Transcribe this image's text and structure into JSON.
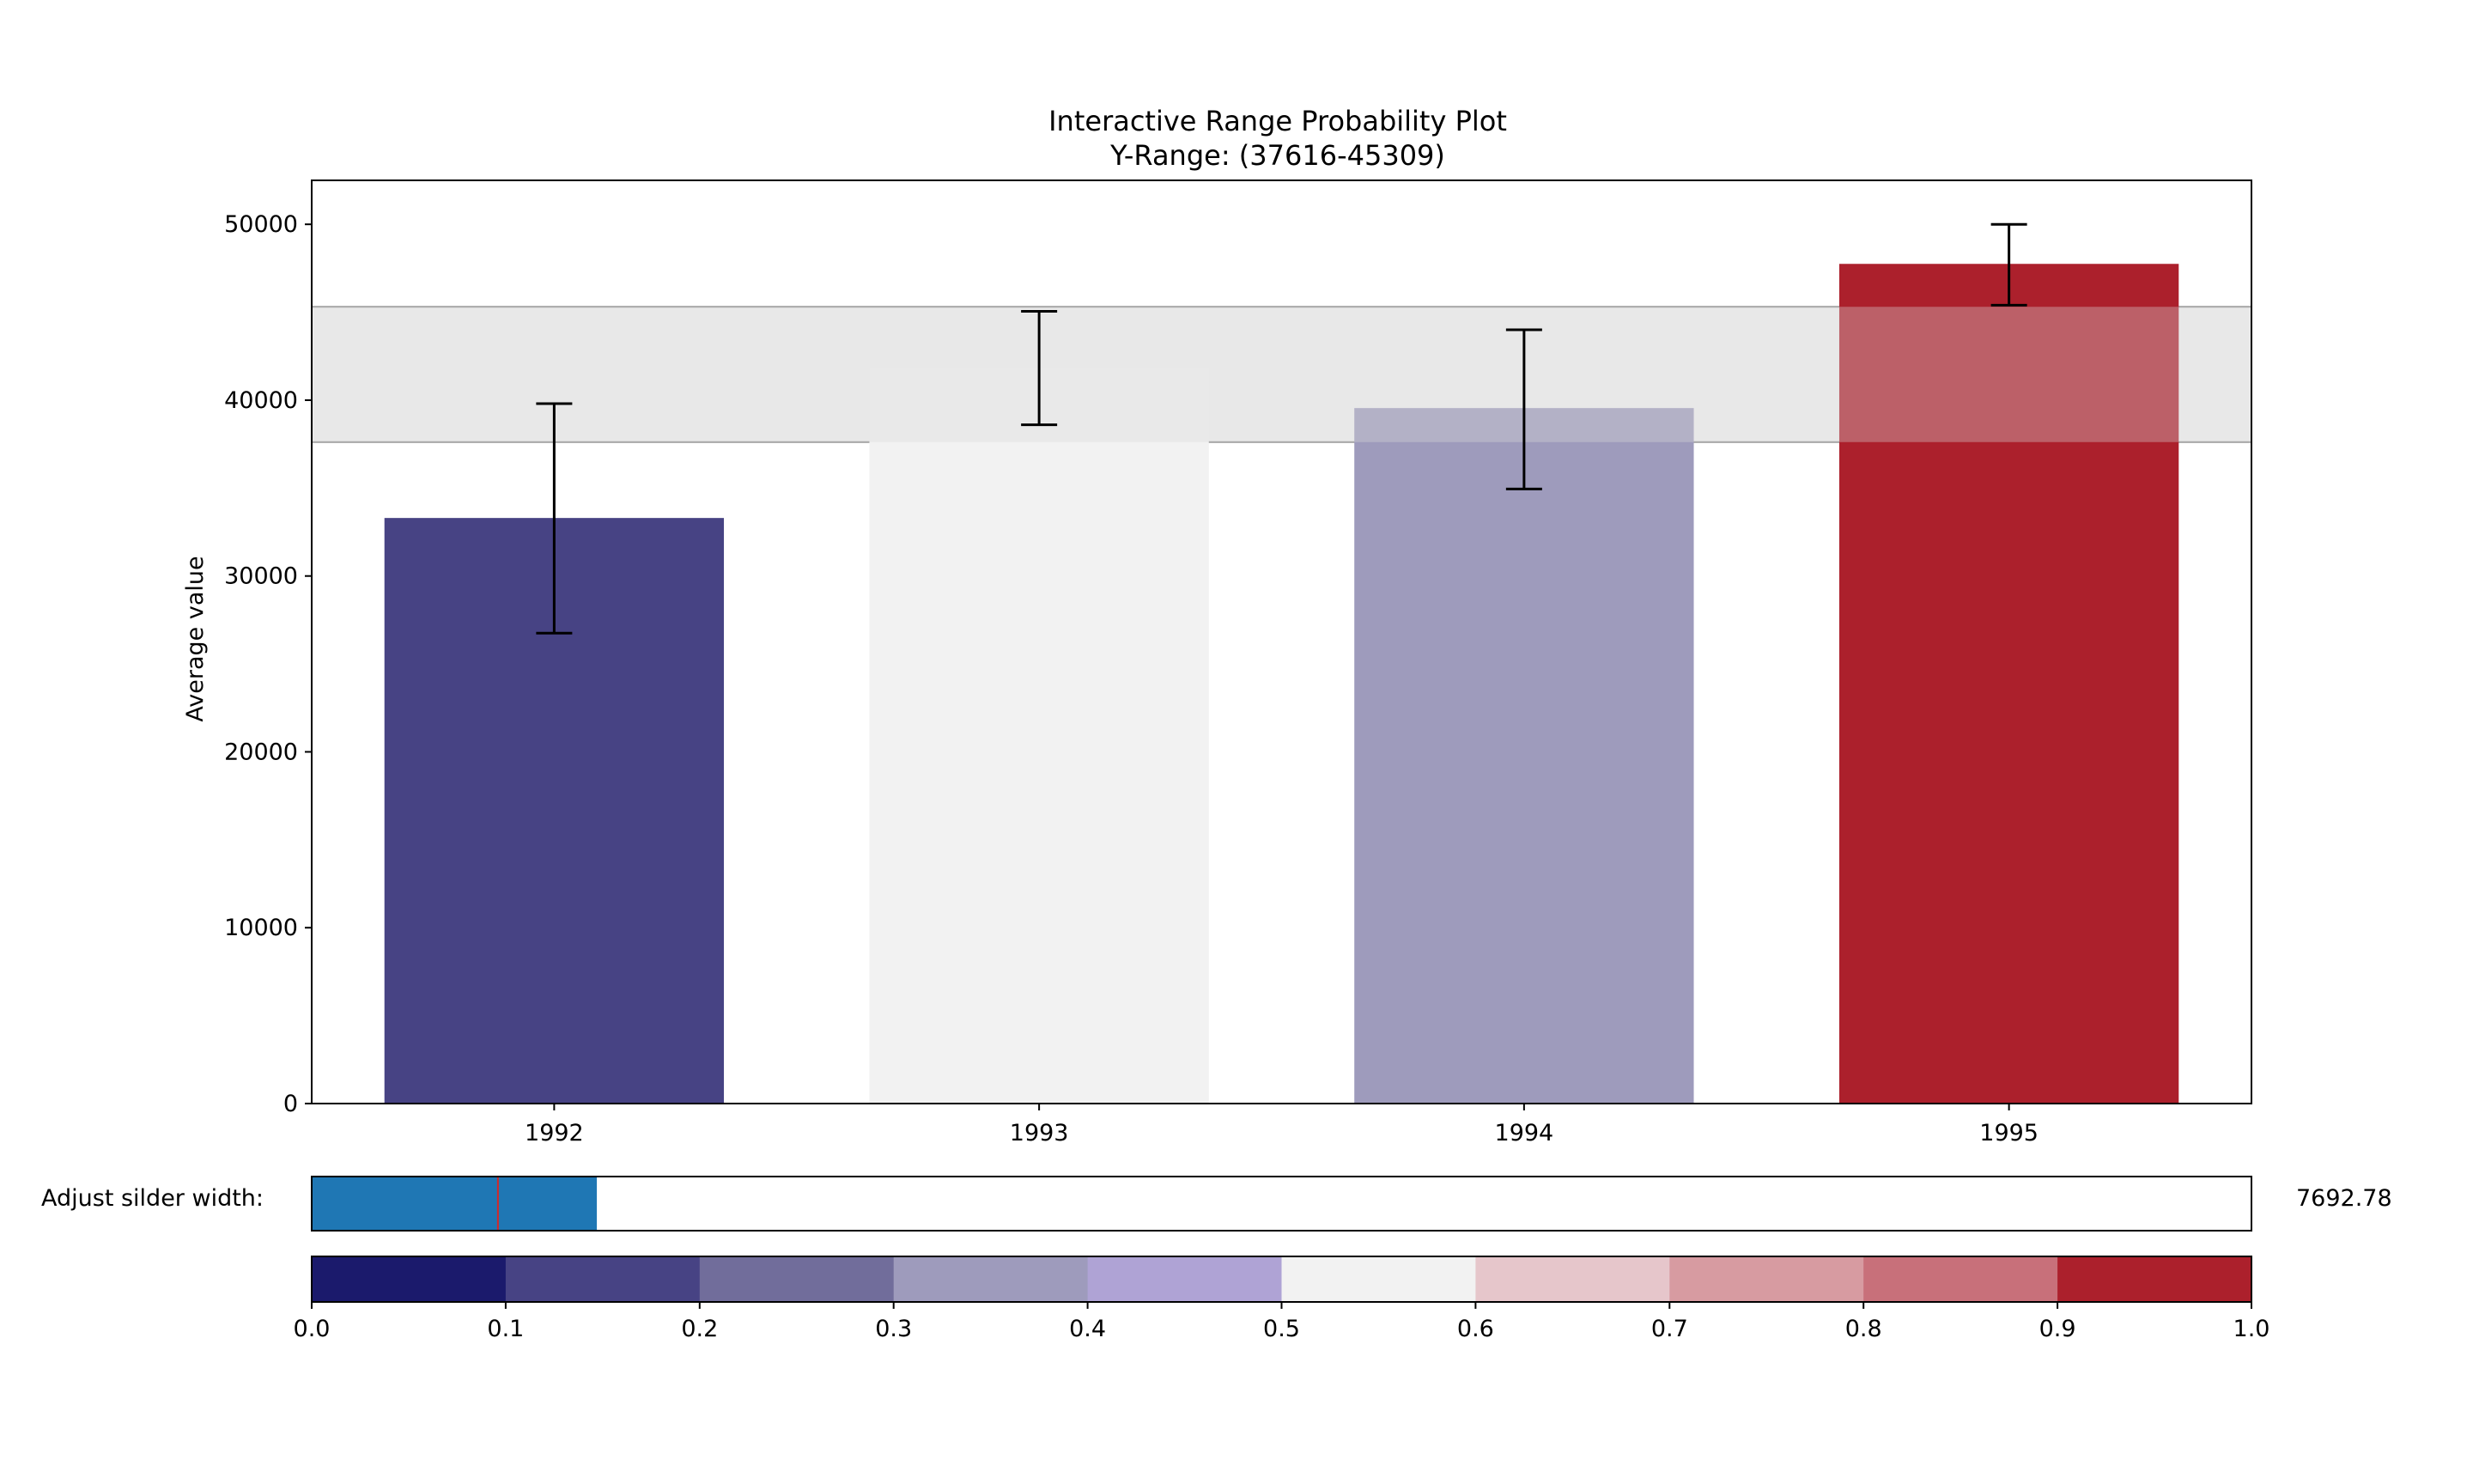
{
  "chart_data": {
    "type": "bar",
    "title": "Interactive Range Probability Plot",
    "subtitle": "Y-Range: (37616-45309)",
    "ylabel": "Average value",
    "xlabel": "",
    "categories": [
      "1992",
      "1993",
      "1994",
      "1995"
    ],
    "values": [
      33300,
      41850,
      39550,
      47750
    ],
    "error_low": [
      26750,
      38600,
      34950,
      45400
    ],
    "error_high": [
      39800,
      45050,
      44000,
      50000
    ],
    "bar_colors": [
      "#474384",
      "#f2f2f2",
      "#9e9bbc",
      "#ac202c"
    ],
    "ylim": [
      0,
      52500
    ],
    "yticks": [
      "0",
      "10000",
      "20000",
      "30000",
      "40000",
      "50000"
    ],
    "highlight_range": [
      37616,
      45309
    ],
    "grid": false,
    "legend": "none"
  },
  "slider": {
    "label": "Adjust silder width:",
    "value_text": "7692.78",
    "fill_fraction": 0.147,
    "marker_fraction": 0.096,
    "fill_color": "#1f77b4",
    "marker_color": "#d62728"
  },
  "colorbar": {
    "colors": [
      "#1b1a6c",
      "#474384",
      "#716d9b",
      "#9e9bbc",
      "#afa3d5",
      "#f2f2f2",
      "#e6c6cb",
      "#d79ba1",
      "#c8707a",
      "#ac202c"
    ],
    "ticks": [
      "0.0",
      "0.1",
      "0.2",
      "0.3",
      "0.4",
      "0.5",
      "0.6",
      "0.7",
      "0.8",
      "0.9",
      "1.0"
    ]
  }
}
